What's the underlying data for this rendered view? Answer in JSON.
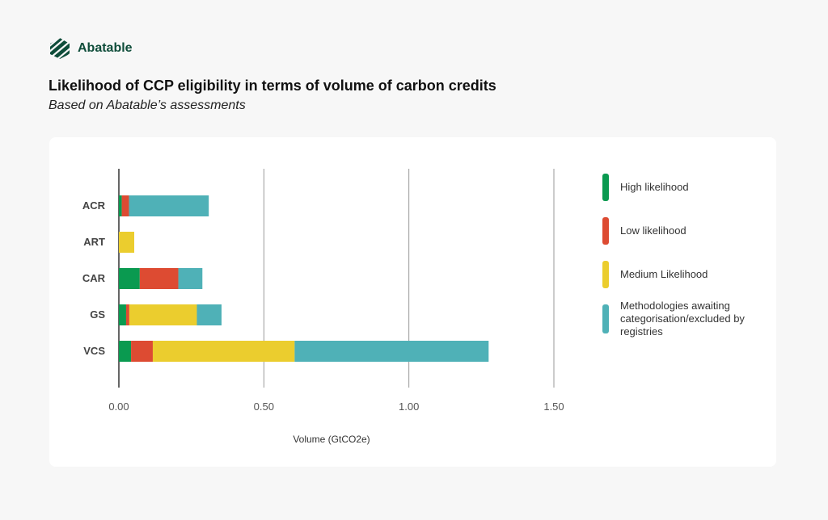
{
  "brand": {
    "name": "Abatable",
    "color": "#0f4d3a"
  },
  "header": {
    "title": "Likelihood of CCP eligibility in terms of volume of carbon credits",
    "subtitle": "Based on Abatable’s assessments"
  },
  "chart_data": {
    "type": "bar",
    "orientation": "horizontal",
    "stacked": true,
    "categories": [
      "ACR",
      "ART",
      "CAR",
      "GS",
      "VCS"
    ],
    "series": [
      {
        "name": "High likelihood",
        "color": "#0a9a50",
        "values": [
          0.01,
          0,
          0.072,
          0.025,
          0.042
        ]
      },
      {
        "name": "Low likelihood",
        "color": "#dd4b32",
        "values": [
          0.025,
          0,
          0.133,
          0.011,
          0.075
        ]
      },
      {
        "name": "Medium Likelihood",
        "color": "#ebcd2e",
        "values": [
          0,
          0.053,
          0,
          0.233,
          0.489
        ]
      },
      {
        "name": "Methodologies awaiting categorisation/excluded by registries",
        "color": "#4fb1b7",
        "values": [
          0.275,
          0,
          0.083,
          0.085,
          0.669
        ]
      }
    ],
    "xlabel": "Volume (GtCO2e)",
    "xlim": [
      0,
      1.5
    ],
    "xticks": [
      "0.00",
      "0.50",
      "1.00",
      "1.50"
    ],
    "grid": true,
    "legend": "right"
  }
}
